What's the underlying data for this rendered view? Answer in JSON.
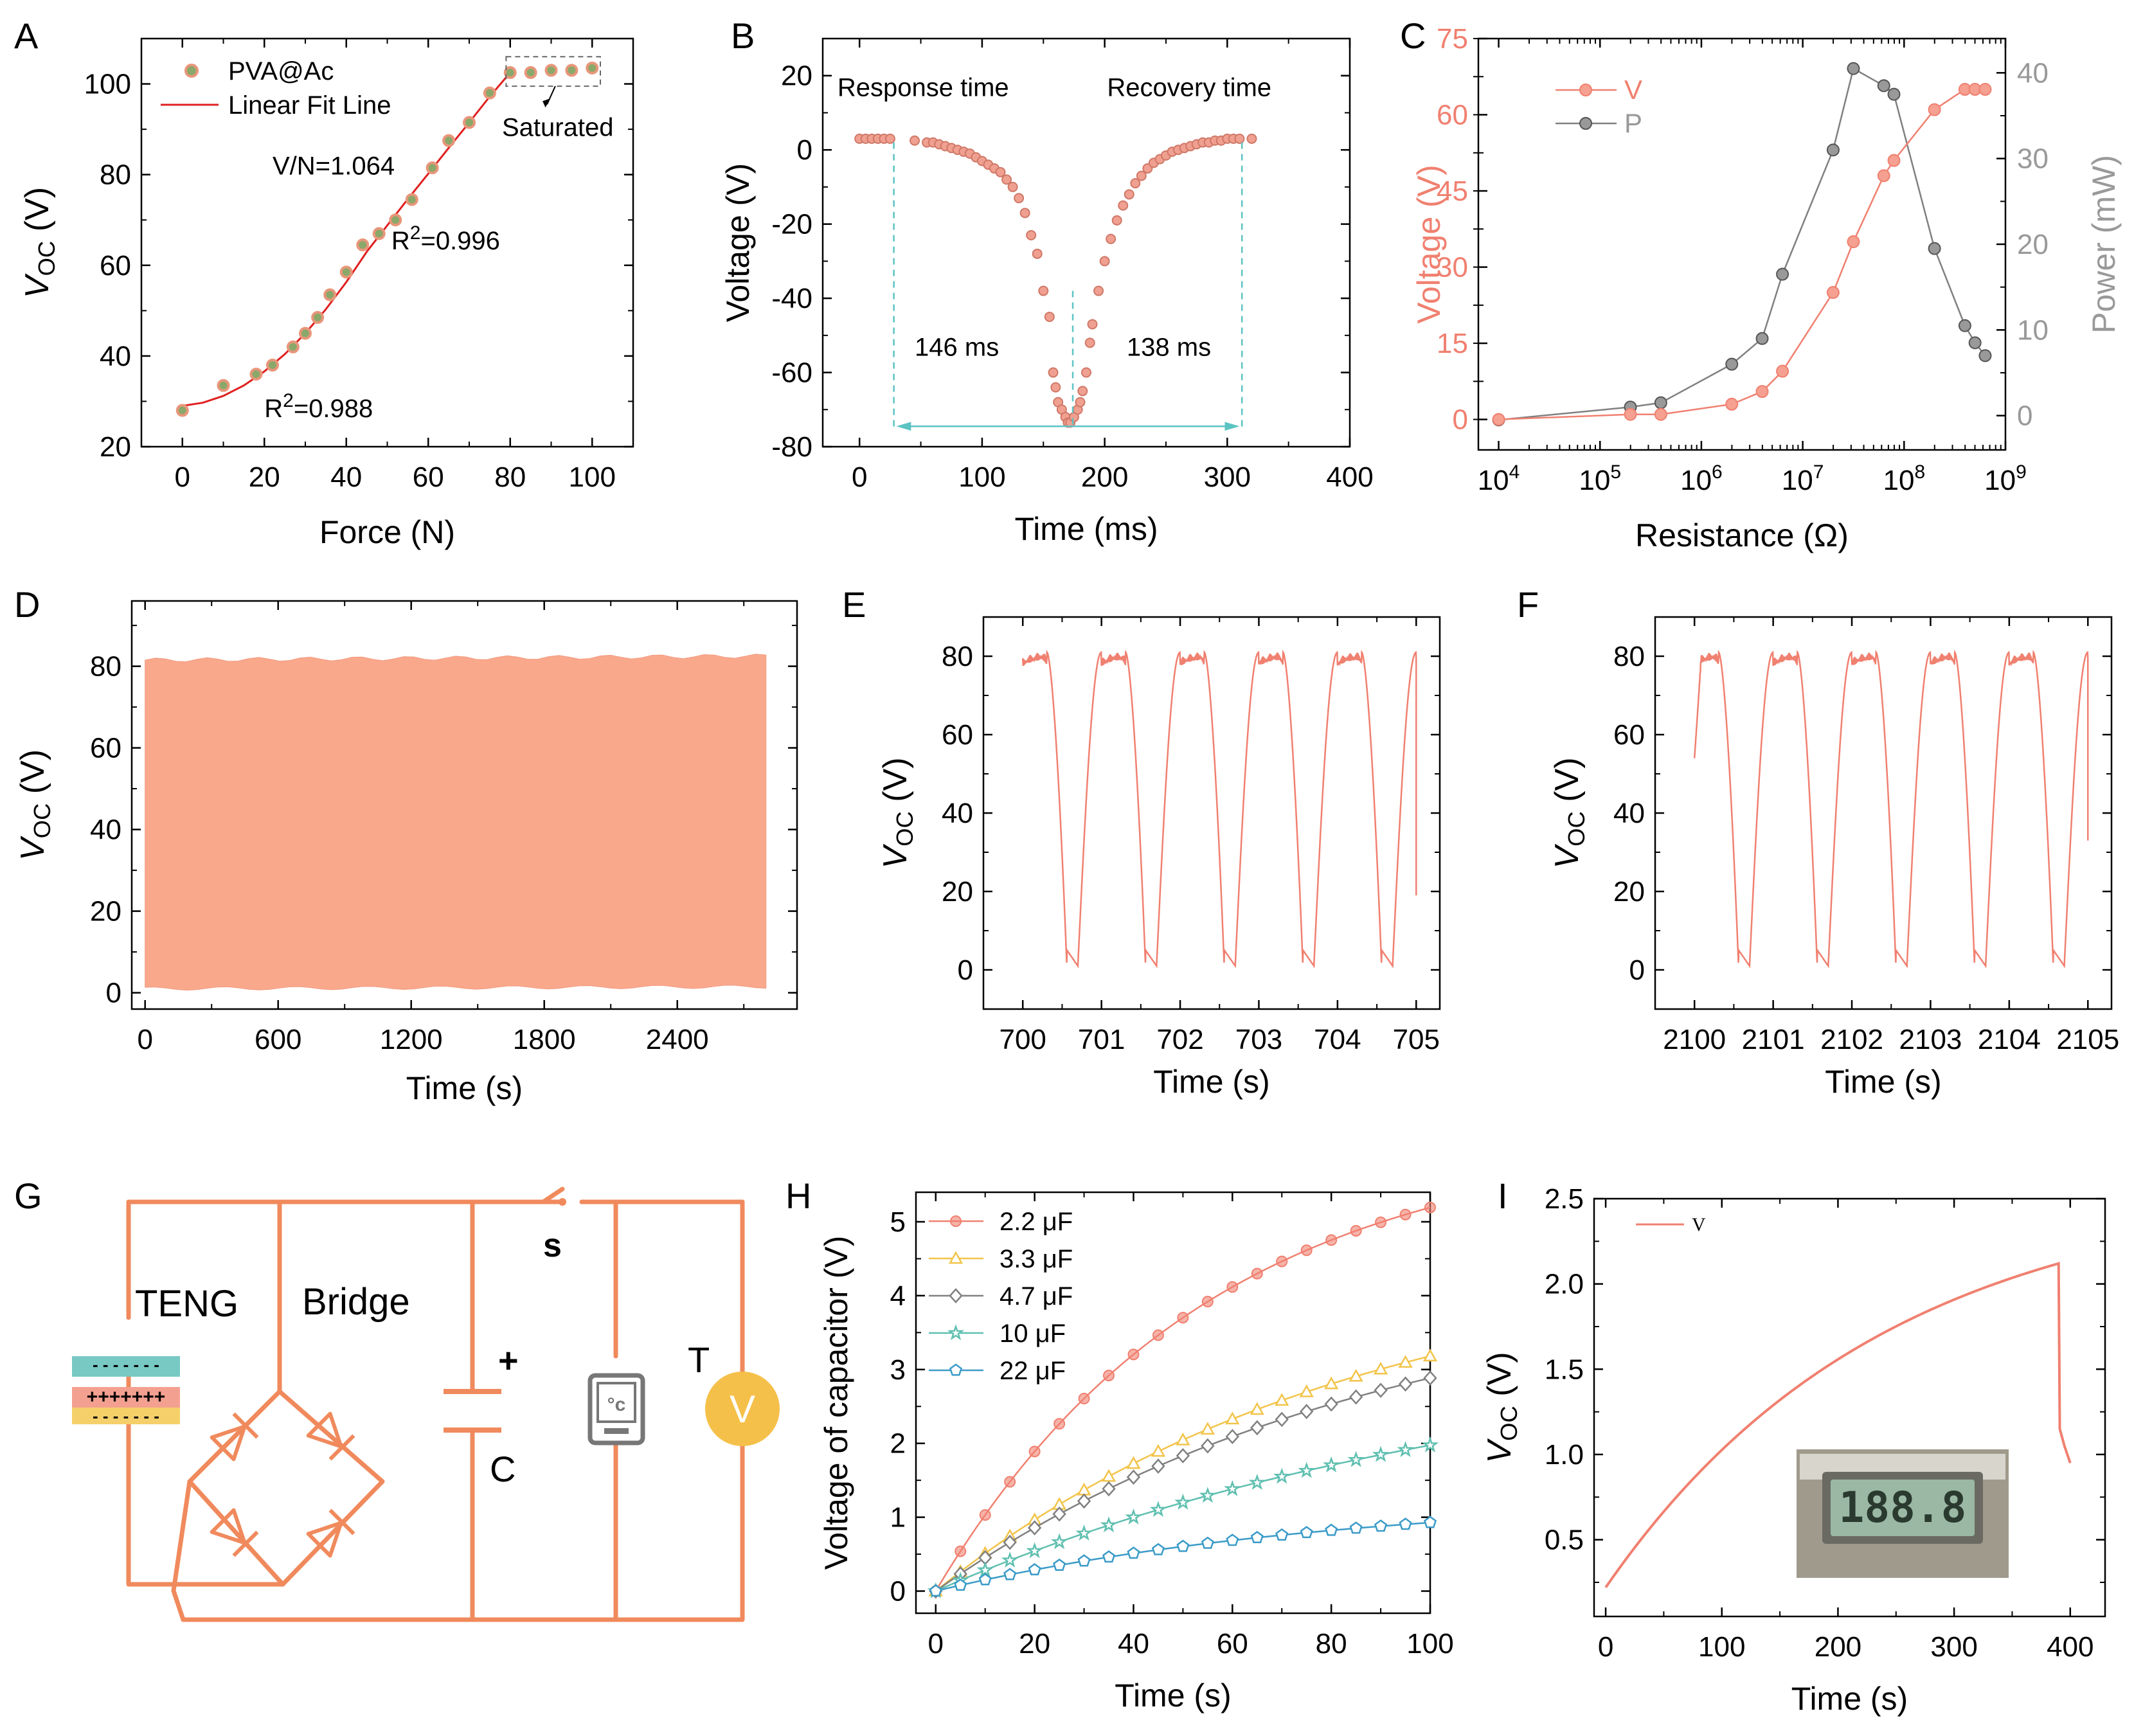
{
  "panels": {
    "A": {
      "letter": "A",
      "chart_data": {
        "type": "scatter",
        "title": "",
        "xlabel": "Force (N)",
        "ylabel_main": "V",
        "ylabel_sub": "OC",
        "ylabel_unit": " (V)",
        "xlim": [
          -10,
          110
        ],
        "ylim": [
          20,
          110
        ],
        "xticks": [
          0,
          20,
          40,
          60,
          80,
          100
        ],
        "yticks": [
          20,
          40,
          60,
          80,
          100
        ],
        "legend": [
          "PVA@Ac",
          "Linear Fit Line"
        ],
        "annotations": {
          "vn": "V/N=1.064",
          "r2a": "=0.996",
          "r2b": "=0.988",
          "r_prefix": "R",
          "r_sup": "2",
          "saturated": "Saturated"
        },
        "series": [
          {
            "name": "PVA@Ac",
            "x": [
              0,
              10,
              18,
              22,
              27,
              30,
              33,
              36,
              40,
              44,
              48,
              52,
              56,
              61,
              65,
              70,
              75,
              80,
              85,
              90,
              95,
              100
            ],
            "y": [
              28,
              33.5,
              36,
              38,
              42,
              45,
              48.5,
              53.5,
              58.5,
              64.5,
              67,
              70,
              74.5,
              81.5,
              87.5,
              91.5,
              98,
              102.5,
              102.5,
              103,
              103,
              103.5
            ]
          },
          {
            "name": "Linear Fit Line",
            "x": [
              0,
              5,
              10,
              15,
              20,
              25,
              30,
              35,
              40,
              45,
              50,
              55,
              60,
              65,
              70,
              75,
              80
            ],
            "y": [
              29,
              29.7,
              31.2,
              33.5,
              36.6,
              40.4,
              45,
              50.3,
              56.3,
              63,
              68.8,
              74.6,
              80.2,
              85.9,
              91.5,
              97.2,
              102.5
            ]
          }
        ]
      }
    },
    "B": {
      "letter": "B",
      "chart_data": {
        "type": "scatter",
        "xlabel": "Time (ms)",
        "ylabel": "Voltage (V)",
        "xlim": [
          -30,
          400
        ],
        "ylim": [
          -80,
          30
        ],
        "xticks": [
          0,
          100,
          200,
          300,
          400
        ],
        "yticks": [
          -80,
          -60,
          -40,
          -20,
          0,
          20
        ],
        "annotations": {
          "response": "Response time",
          "recovery": "Recovery time",
          "t1": "146 ms",
          "t2": "138 ms"
        },
        "series": [
          {
            "name": "Voltage",
            "x": [
              0,
              5,
              10,
              15,
              20,
              25,
              45,
              55,
              60,
              65,
              70,
              75,
              80,
              85,
              90,
              95,
              100,
              105,
              110,
              115,
              120,
              125,
              130,
              135,
              140,
              145,
              150,
              155,
              158,
              160,
              162,
              165,
              168,
              170,
              172,
              175,
              178,
              180,
              182,
              185,
              188,
              190,
              195,
              200,
              205,
              210,
              215,
              220,
              225,
              230,
              235,
              240,
              245,
              250,
              255,
              260,
              265,
              270,
              275,
              280,
              285,
              290,
              295,
              300,
              305,
              310,
              320
            ],
            "y": [
              3,
              3,
              3,
              3,
              3,
              3,
              2.5,
              2,
              2,
              1.5,
              1,
              0.5,
              0,
              -0.5,
              -1,
              -2,
              -3,
              -4,
              -5,
              -6,
              -8,
              -10,
              -13,
              -17,
              -23,
              -28,
              -38,
              -45,
              -60,
              -64,
              -68,
              -70,
              -72,
              -73.5,
              -73.5,
              -72,
              -70,
              -68,
              -65,
              -60,
              -52,
              -47,
              -38,
              -30,
              -24,
              -19,
              -15,
              -12,
              -9,
              -7,
              -5,
              -3.5,
              -2.5,
              -1.5,
              -0.5,
              0,
              0.5,
              1,
              1.5,
              2,
              2,
              2.5,
              2.5,
              3,
              3,
              3,
              3
            ]
          }
        ]
      }
    },
    "C": {
      "letter": "C",
      "chart_data": {
        "type": "line",
        "xlabel": "Resistance (Ω)",
        "ylabel": "Voltage (V)",
        "ylabel2": "Power (mW)",
        "xscale": "log",
        "xlim_exp": [
          3.8,
          9
        ],
        "ylim": [
          -6,
          75
        ],
        "ylim2": [
          -4,
          44
        ],
        "xtick_exps": [
          4,
          5,
          6,
          7,
          8,
          9
        ],
        "yticks": [
          0,
          15,
          30,
          45,
          60,
          75
        ],
        "yticks2": [
          0,
          10,
          20,
          30,
          40
        ],
        "legend": [
          "V",
          "P"
        ],
        "series": [
          {
            "name": "V",
            "x_exp": [
              4,
              5.3,
              5.6,
              6.3,
              6.6,
              6.8,
              7.3,
              7.5,
              7.8,
              7.9,
              8.3,
              8.6,
              8.7,
              8.8
            ],
            "y": [
              0,
              1,
              1,
              3,
              5.5,
              9.5,
              25,
              35,
              48,
              51,
              61,
              65,
              65,
              65
            ]
          },
          {
            "name": "P",
            "x_exp": [
              4,
              5.3,
              5.6,
              6.3,
              6.6,
              6.8,
              7.3,
              7.5,
              7.8,
              7.9,
              8.3,
              8.6,
              8.7,
              8.8
            ],
            "y": [
              -0.5,
              1,
              1.5,
              6,
              9,
              16.5,
              31,
              40.5,
              38.5,
              37.5,
              19.5,
              10.5,
              8.5,
              7
            ]
          }
        ]
      }
    },
    "D": {
      "letter": "D",
      "chart_data": {
        "type": "area",
        "xlabel": "Time (s)",
        "ylabel_main": "V",
        "ylabel_sub": "OC",
        "ylabel_unit": " (V)",
        "xlim": [
          -60,
          2940
        ],
        "ylim": [
          -4,
          96
        ],
        "xticks": [
          0,
          600,
          1200,
          1800,
          2400
        ],
        "yticks": [
          0,
          20,
          40,
          60,
          80
        ],
        "series": [
          {
            "name": "Voc envelope",
            "x": [
              0,
              2800
            ],
            "upper": [
              81.5,
              82.5
            ],
            "lower": [
              1,
              1.5
            ]
          }
        ]
      }
    },
    "E": {
      "letter": "E",
      "chart_data": {
        "type": "line",
        "xlabel": "Time (s)",
        "ylabel_main": "V",
        "ylabel_sub": "OC",
        "ylabel_unit": " (V)",
        "xlim": [
          699.5,
          705.3
        ],
        "ylim": [
          -10,
          90
        ],
        "xticks": [
          700,
          701,
          702,
          703,
          704,
          705
        ],
        "yticks": [
          0,
          20,
          40,
          60,
          80
        ],
        "series": [
          {
            "name": "Voc",
            "start": 700.0,
            "end": 705.0,
            "period": 1.0,
            "peak": 81,
            "trough": 1,
            "end_value": 19
          }
        ]
      }
    },
    "F": {
      "letter": "F",
      "chart_data": {
        "type": "line",
        "xlabel": "Time (s)",
        "ylabel_main": "V",
        "ylabel_sub": "OC",
        "ylabel_unit": " (V)",
        "xlim": [
          2099.5,
          2105.3
        ],
        "ylim": [
          -10,
          90
        ],
        "xticks": [
          2100,
          2101,
          2102,
          2103,
          2104,
          2105
        ],
        "yticks": [
          0,
          20,
          40,
          60,
          80
        ],
        "series": [
          {
            "name": "Voc",
            "start": 2100.0,
            "end": 2105.0,
            "period": 1.0,
            "peak": 81,
            "trough": 1,
            "start_value": 54,
            "end_value": 33
          }
        ]
      }
    },
    "G": {
      "letter": "G",
      "labels": {
        "teng": "TENG",
        "bridge": "Bridge",
        "switch": "s",
        "plus": "+",
        "cap": "C",
        "therm": "T",
        "volt": "V",
        "therm_icon": "°c",
        "minus_row": "- - - - - - -",
        "plus_row": "+++++++"
      }
    },
    "H": {
      "letter": "H",
      "chart_data": {
        "type": "line",
        "xlabel": "Time (s)",
        "ylabel": "Voltage of capacitor (V)",
        "xlim": [
          -4,
          100
        ],
        "ylim": [
          -0.3,
          5.4
        ],
        "xticks": [
          0,
          20,
          40,
          60,
          80,
          100
        ],
        "yticks": [
          0,
          1,
          2,
          3,
          4,
          5
        ],
        "series": [
          {
            "name": "2.2 μF",
            "color": "#f08070",
            "vmax": 6.2,
            "tau": 55,
            "marker": "circle"
          },
          {
            "name": "3.3 μF",
            "color": "#f2c44a",
            "vmax": 4.6,
            "tau": 85,
            "marker": "triangle"
          },
          {
            "name": "4.7 μF",
            "color": "#808080",
            "vmax": 4.3,
            "tau": 90,
            "marker": "diamond"
          },
          {
            "name": "10 μF",
            "color": "#5fbfb0",
            "vmax": 3.4,
            "tau": 115,
            "marker": "star"
          },
          {
            "name": "22 μF",
            "color": "#3a9bc8",
            "vmax": 1.3,
            "tau": 80,
            "marker": "pentagon"
          }
        ]
      }
    },
    "I": {
      "letter": "I",
      "chart_data": {
        "type": "line",
        "xlabel": "Time (s)",
        "ylabel_main": "V",
        "ylabel_sub": "OC",
        "ylabel_unit": " (V)",
        "xlim": [
          -10,
          430
        ],
        "ylim": [
          0.05,
          2.5
        ],
        "xticks": [
          0,
          100,
          200,
          300,
          400
        ],
        "yticks": [
          0.5,
          1.0,
          1.5,
          2.0,
          2.5
        ],
        "ytick_labels": [
          "0.5",
          "1.0",
          "1.5",
          "2.0",
          "2.5"
        ],
        "legend": [
          "V"
        ],
        "inset_text": "188.8",
        "series": [
          {
            "name": "V",
            "x_end_charge": 390,
            "v_start": 0.22,
            "v_end_charge": 2.12,
            "v_final": 0.95,
            "x_final": 400
          }
        ]
      }
    }
  },
  "colors": {
    "salmon": "#f08070",
    "fit_red": "#e02020",
    "gray": "#808080",
    "teal": "#5cc3c3",
    "wire": "#f08a5d",
    "area_fill": "#f9a88c",
    "teng_pink": "#f4a090",
    "teng_yellow": "#f5d06a",
    "volt_yellow": "#f5c04a"
  }
}
